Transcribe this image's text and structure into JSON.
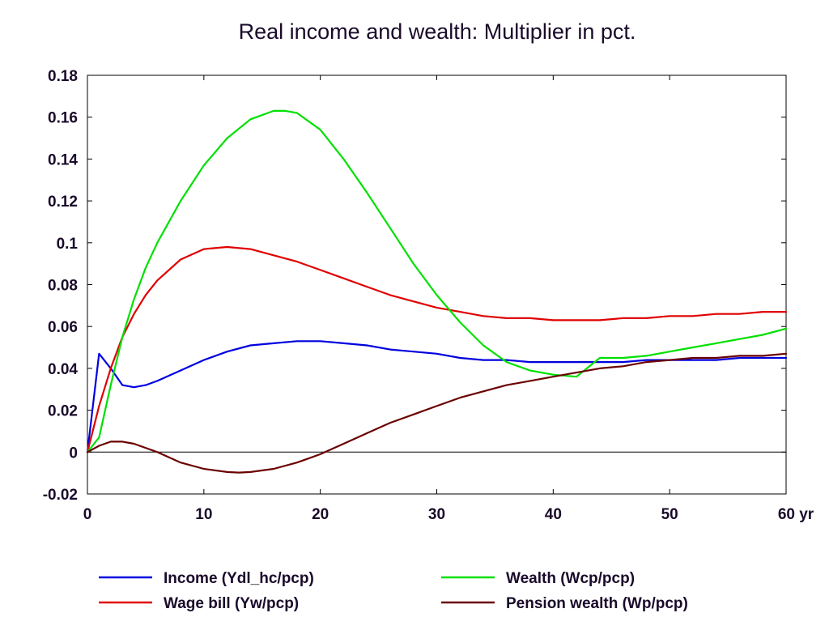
{
  "chart_data": {
    "type": "line",
    "title": "Real income and wealth: Multiplier in pct.",
    "xlabel": "",
    "ylabel": "",
    "x_unit": "yr",
    "xlim": [
      0,
      60
    ],
    "ylim": [
      -0.02,
      0.18
    ],
    "x_ticks": [
      0,
      10,
      20,
      30,
      40,
      50,
      60
    ],
    "x_tick_labels": [
      "0",
      "10",
      "20",
      "30",
      "40",
      "50",
      "60"
    ],
    "y_ticks": [
      -0.02,
      0,
      0.02,
      0.04,
      0.06,
      0.08,
      0.1,
      0.12,
      0.14,
      0.16,
      0.18
    ],
    "y_tick_labels": [
      "-0.02",
      "0",
      "0.02",
      "0.04",
      "0.06",
      "0.08",
      "0.1",
      "0.12",
      "0.14",
      "0.16",
      "0.18"
    ],
    "grid": false,
    "zero_line": true,
    "legend_position": "bottom",
    "series": [
      {
        "name": "Income (Ydl_hc/pcp)",
        "color": "#0000e0",
        "x": [
          0,
          1,
          2,
          3,
          4,
          5,
          6,
          8,
          10,
          12,
          14,
          16,
          18,
          20,
          22,
          24,
          26,
          28,
          30,
          32,
          34,
          36,
          38,
          40,
          42,
          44,
          46,
          48,
          50,
          52,
          54,
          56,
          58,
          60
        ],
        "y": [
          0,
          0.047,
          0.04,
          0.032,
          0.031,
          0.032,
          0.034,
          0.039,
          0.044,
          0.048,
          0.051,
          0.052,
          0.053,
          0.053,
          0.052,
          0.051,
          0.049,
          0.048,
          0.047,
          0.045,
          0.044,
          0.044,
          0.043,
          0.043,
          0.043,
          0.043,
          0.043,
          0.044,
          0.044,
          0.044,
          0.044,
          0.045,
          0.045,
          0.045
        ]
      },
      {
        "name": "Wage bill (Yw/pcp)",
        "color": "#e00000",
        "x": [
          0,
          1,
          2,
          3,
          4,
          5,
          6,
          8,
          10,
          12,
          14,
          16,
          18,
          20,
          22,
          24,
          26,
          28,
          30,
          32,
          34,
          36,
          38,
          40,
          42,
          44,
          46,
          48,
          50,
          52,
          54,
          56,
          58,
          60
        ],
        "y": [
          0,
          0.022,
          0.04,
          0.055,
          0.066,
          0.075,
          0.082,
          0.092,
          0.097,
          0.098,
          0.097,
          0.094,
          0.091,
          0.087,
          0.083,
          0.079,
          0.075,
          0.072,
          0.069,
          0.067,
          0.065,
          0.064,
          0.064,
          0.063,
          0.063,
          0.063,
          0.064,
          0.064,
          0.065,
          0.065,
          0.066,
          0.066,
          0.067,
          0.067
        ]
      },
      {
        "name": "Wealth (Wcp/pcp)",
        "color": "#00e000",
        "x": [
          0,
          1,
          2,
          3,
          4,
          5,
          6,
          8,
          10,
          12,
          14,
          16,
          17,
          18,
          20,
          22,
          24,
          26,
          28,
          30,
          32,
          34,
          36,
          38,
          40,
          42,
          44,
          46,
          48,
          50,
          52,
          54,
          56,
          58,
          60
        ],
        "y": [
          0,
          0.007,
          0.032,
          0.055,
          0.073,
          0.088,
          0.1,
          0.12,
          0.137,
          0.15,
          0.159,
          0.163,
          0.163,
          0.162,
          0.154,
          0.14,
          0.124,
          0.107,
          0.09,
          0.075,
          0.062,
          0.051,
          0.043,
          0.039,
          0.037,
          0.036,
          0.045,
          0.045,
          0.046,
          0.048,
          0.05,
          0.052,
          0.054,
          0.056,
          0.059
        ]
      },
      {
        "name": "Pension wealth (Wp/pcp)",
        "color": "#6b0000",
        "x": [
          0,
          1,
          2,
          3,
          4,
          5,
          6,
          8,
          10,
          12,
          13,
          14,
          16,
          18,
          20,
          22,
          24,
          26,
          28,
          30,
          32,
          34,
          36,
          38,
          40,
          42,
          44,
          46,
          48,
          50,
          52,
          54,
          56,
          58,
          60
        ],
        "y": [
          0,
          0.003,
          0.005,
          0.005,
          0.004,
          0.002,
          0.0,
          -0.005,
          -0.008,
          -0.0095,
          -0.0098,
          -0.0095,
          -0.008,
          -0.005,
          -0.001,
          0.004,
          0.009,
          0.014,
          0.018,
          0.022,
          0.026,
          0.029,
          0.032,
          0.034,
          0.036,
          0.038,
          0.04,
          0.041,
          0.043,
          0.044,
          0.045,
          0.045,
          0.046,
          0.046,
          0.047
        ]
      }
    ]
  }
}
